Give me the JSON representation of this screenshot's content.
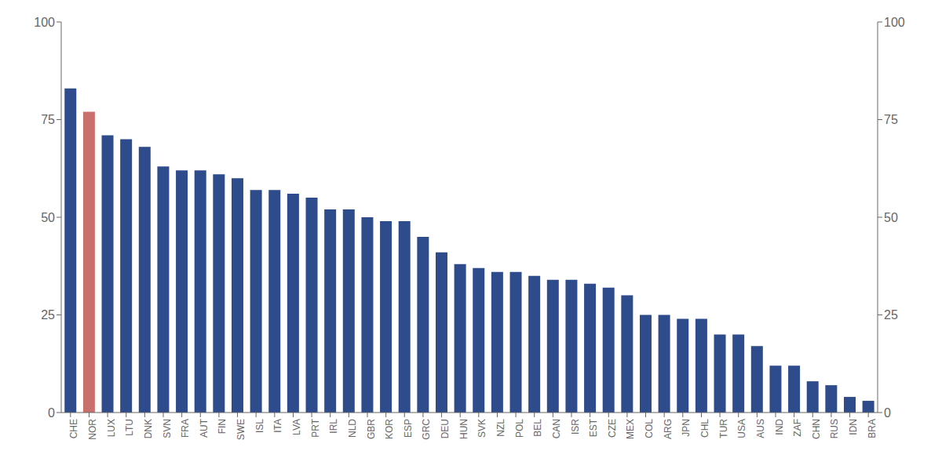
{
  "chart_data": {
    "type": "bar",
    "categories": [
      "CHE",
      "NOR",
      "LUX",
      "LTU",
      "DNK",
      "SVN",
      "FRA",
      "AUT",
      "FIN",
      "SWE",
      "ISL",
      "ITA",
      "LVA",
      "PRT",
      "IRL",
      "NLD",
      "GBR",
      "KOR",
      "ESP",
      "GRC",
      "DEU",
      "HUN",
      "SVK",
      "NZL",
      "POL",
      "BEL",
      "CAN",
      "ISR",
      "EST",
      "CZE",
      "MEX",
      "COL",
      "ARG",
      "JPN",
      "CHL",
      "TUR",
      "USA",
      "AUS",
      "IND",
      "ZAF",
      "CHN",
      "RUS",
      "IDN",
      "BRA"
    ],
    "values": [
      83,
      77,
      71,
      70,
      68,
      63,
      62,
      62,
      61,
      60,
      57,
      57,
      56,
      55,
      52,
      52,
      50,
      49,
      49,
      45,
      41,
      38,
      37,
      36,
      36,
      35,
      34,
      34,
      33,
      32,
      30,
      25,
      25,
      24,
      24,
      20,
      20,
      17,
      12,
      12,
      8,
      7,
      4,
      3
    ],
    "colors": [
      "#2E4B8C",
      "#C9706C",
      "#2E4B8C",
      "#2E4B8C",
      "#2E4B8C",
      "#2E4B8C",
      "#2E4B8C",
      "#2E4B8C",
      "#2E4B8C",
      "#2E4B8C",
      "#2E4B8C",
      "#2E4B8C",
      "#2E4B8C",
      "#2E4B8C",
      "#2E4B8C",
      "#2E4B8C",
      "#2E4B8C",
      "#2E4B8C",
      "#2E4B8C",
      "#2E4B8C",
      "#2E4B8C",
      "#2E4B8C",
      "#2E4B8C",
      "#2E4B8C",
      "#2E4B8C",
      "#2E4B8C",
      "#2E4B8C",
      "#2E4B8C",
      "#2E4B8C",
      "#2E4B8C",
      "#2E4B8C",
      "#2E4B8C",
      "#2E4B8C",
      "#2E4B8C",
      "#2E4B8C",
      "#2E4B8C",
      "#2E4B8C",
      "#2E4B8C",
      "#2E4B8C",
      "#2E4B8C",
      "#2E4B8C",
      "#2E4B8C",
      "#2E4B8C",
      "#2E4B8C"
    ],
    "ylim": [
      0,
      100
    ],
    "yticks": [
      0,
      25,
      50,
      75,
      100
    ],
    "y2lim": [
      0,
      100
    ],
    "y2ticks": [
      0,
      25,
      50,
      75,
      100
    ],
    "grid": false
  }
}
